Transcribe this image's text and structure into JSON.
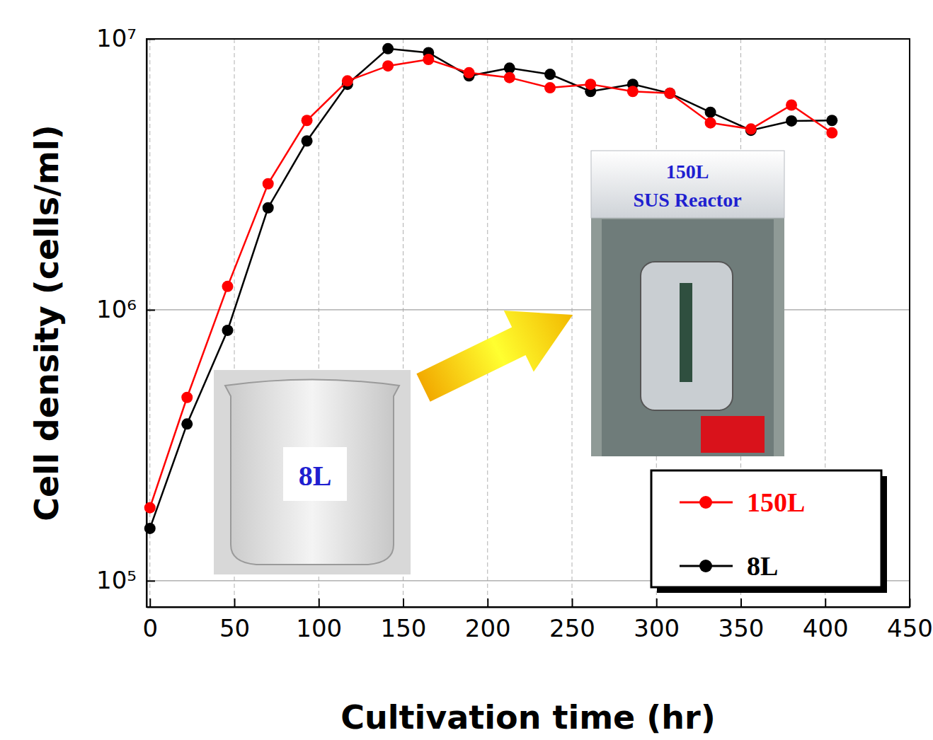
{
  "chart_data": {
    "type": "line",
    "x_label": "Cultivation time (hr)",
    "y_label": "Cell density (cells/ml)",
    "x": [
      0,
      22,
      46,
      70,
      93,
      117,
      141,
      165,
      189,
      213,
      237,
      261,
      286,
      308,
      332,
      356,
      380,
      404
    ],
    "series": [
      {
        "name": "150L",
        "color": "#ff0000",
        "marker": "circle",
        "line_style": "solid",
        "values": [
          186000,
          475000,
          1220000,
          2920000,
          5000000,
          7000000,
          7950000,
          8400000,
          7500000,
          7200000,
          6600000,
          6800000,
          6400000,
          6300000,
          4900000,
          4650000,
          5700000,
          4500000
        ]
      },
      {
        "name": "8L",
        "color": "#000000",
        "marker": "circle",
        "line_style": "solid",
        "values": [
          156000,
          379000,
          840000,
          2380000,
          4200000,
          6800000,
          9200000,
          8900000,
          7300000,
          7800000,
          7400000,
          6400000,
          6800000,
          6300000,
          5360000,
          4600000,
          4980000,
          5000000
        ]
      }
    ],
    "xlim": [
      -2,
      450
    ],
    "xticks": [
      0,
      50,
      100,
      150,
      200,
      250,
      300,
      350,
      400,
      450
    ],
    "ylim": [
      80000,
      10000000
    ],
    "yticks": [
      {
        "value": 100000,
        "label": "10⁵"
      },
      {
        "value": 1000000,
        "label": "10⁶"
      },
      {
        "value": 10000000,
        "label": "10⁷"
      }
    ],
    "log": "y",
    "grid": true,
    "legend": "lower right",
    "annotations": [
      "8L",
      "150L",
      "SUS Reactor"
    ]
  }
}
